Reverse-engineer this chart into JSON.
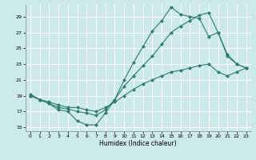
{
  "xlabel": "Humidex (Indice chaleur)",
  "bg_color": "#cce9ec",
  "grid_color": "#ffffff",
  "line_color": "#2e7d6e",
  "xlim": [
    -0.5,
    23.5
  ],
  "ylim": [
    14.5,
    30.5
  ],
  "xticks": [
    0,
    1,
    2,
    3,
    4,
    5,
    6,
    7,
    8,
    9,
    10,
    11,
    12,
    13,
    14,
    15,
    16,
    17,
    18,
    19,
    20,
    21,
    22,
    23
  ],
  "yticks": [
    15,
    17,
    19,
    21,
    23,
    25,
    27,
    29
  ],
  "line1_x": [
    0,
    1,
    2,
    3,
    4,
    5,
    6,
    7,
    8,
    9,
    10,
    11,
    12,
    13,
    14,
    15,
    16,
    17,
    18,
    19,
    20,
    21,
    22,
    23
  ],
  "line1_y": [
    19.2,
    18.5,
    18.0,
    17.2,
    17.0,
    15.8,
    15.3,
    15.3,
    16.8,
    18.5,
    21.0,
    23.2,
    25.2,
    27.2,
    28.5,
    30.2,
    29.3,
    29.0,
    28.8,
    26.5,
    27.0,
    24.2,
    23.0,
    22.5
  ],
  "line2_x": [
    0,
    1,
    2,
    3,
    4,
    5,
    6,
    7,
    8,
    9,
    10,
    11,
    12,
    13,
    14,
    15,
    16,
    17,
    18,
    19,
    20,
    21,
    22,
    23
  ],
  "line2_y": [
    19.0,
    18.5,
    18.2,
    17.8,
    17.5,
    17.5,
    17.2,
    17.0,
    17.5,
    18.2,
    19.0,
    19.8,
    20.5,
    21.0,
    21.5,
    22.0,
    22.2,
    22.5,
    22.8,
    23.0,
    22.0,
    21.5,
    22.0,
    22.5
  ],
  "line3_x": [
    0,
    1,
    2,
    3,
    4,
    5,
    6,
    7,
    8,
    9,
    10,
    11,
    12,
    13,
    14,
    15,
    16,
    17,
    18,
    19,
    20,
    21,
    22,
    23
  ],
  "line3_y": [
    19.0,
    18.5,
    18.0,
    17.5,
    17.3,
    17.0,
    16.8,
    16.5,
    17.2,
    18.5,
    20.2,
    21.5,
    22.8,
    24.0,
    25.5,
    27.0,
    27.8,
    28.5,
    29.2,
    29.5,
    27.0,
    24.0,
    23.0,
    22.5
  ]
}
